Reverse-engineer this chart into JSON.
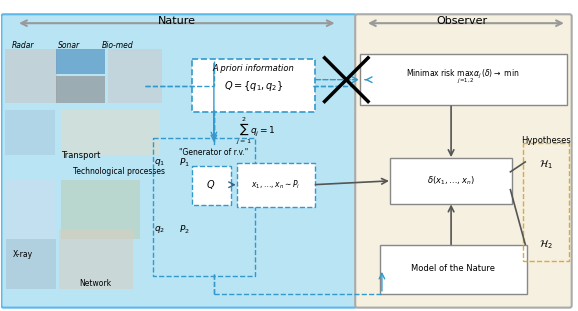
{
  "fig_width": 5.78,
  "fig_height": 3.11,
  "dpi": 100,
  "nature_bg_color": "#b8e4f4",
  "observer_bg_color": "#f5f0e0",
  "nature_label": "Nature",
  "observer_label": "Observer",
  "radar_label": "Radar",
  "sonar_label": "Sonar",
  "biomed_label": "Bio-med",
  "transport_label": "Transport",
  "tech_label": "Technological processes",
  "xray_label": "X-ray",
  "network_label": "Network",
  "apriori_label": "A priori information",
  "apriori_box_text": "$Q=\\{q_1, q_2\\}$",
  "sum_text": "$\\sum_{j=1}^{2} q_j = 1$",
  "generator_label": "\"Generator of r.v.\"",
  "Q_label": "$Q$",
  "samples_text": "$x_1, \\ldots, x_n \\sim P_i$",
  "minimax_text": "Minimax risk $\\max_{j=1,2}\\alpha_j(\\delta) \\to$ min",
  "delta_text": "$\\delta(x_1, \\ldots, x_n)$",
  "model_text": "Model of the Nature",
  "hypotheses_label": "Hypotheses",
  "h1_label": "$\\mathcal{H}_1$",
  "h2_label": "$\\mathcal{H}_2$",
  "q1_label": "$q_1$",
  "q2_label": "$q_2$",
  "p1_label": "$P_1$",
  "p2_label": "$P_2$"
}
